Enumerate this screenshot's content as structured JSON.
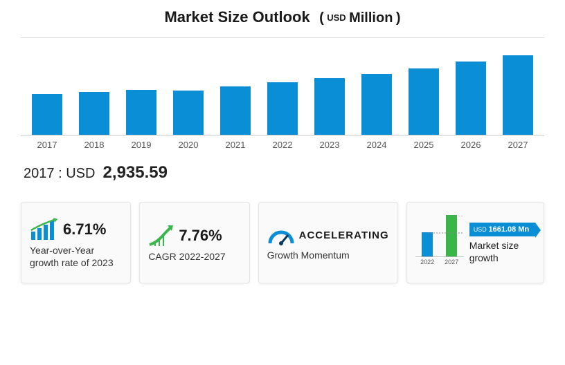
{
  "title": {
    "main": "Market Size Outlook",
    "paren_open": "(",
    "usd": "USD",
    "million": "Million",
    "paren_close": ")"
  },
  "chart": {
    "type": "bar",
    "years": [
      "2017",
      "2018",
      "2019",
      "2020",
      "2021",
      "2022",
      "2023",
      "2024",
      "2025",
      "2026",
      "2027"
    ],
    "values": [
      59,
      62,
      65,
      64,
      70,
      76,
      82,
      88,
      96,
      106,
      115
    ],
    "bar_color": "#0a8ed6",
    "background": "#ffffff",
    "axis_color": "#c8c8c8",
    "ymax": 140
  },
  "baseline": {
    "year": "2017",
    "sep": ":",
    "currency": "USD",
    "value": "2,935.59"
  },
  "cards": {
    "yoy": {
      "value": "6.71%",
      "label": "Year-over-Year growth rate of 2023",
      "icon_bar_color": "#0a8ed6",
      "icon_line_color": "#3ab54a"
    },
    "cagr": {
      "value": "7.76%",
      "label": "CAGR  2022-2027",
      "icon_color": "#3ab54a"
    },
    "momentum": {
      "value": "ACCELERATING",
      "label": "Growth Momentum",
      "icon_color": "#0a8ed6"
    },
    "growth": {
      "mini_years": [
        "2022",
        "2027"
      ],
      "mini_values": [
        35,
        60
      ],
      "mini_colors": [
        "#0a8ed6",
        "#3ab54a"
      ],
      "delta_bg": "#0a8ed6",
      "delta_usd": "USD",
      "delta_value": "1661.08 Mn",
      "label": "Market size growth"
    }
  }
}
